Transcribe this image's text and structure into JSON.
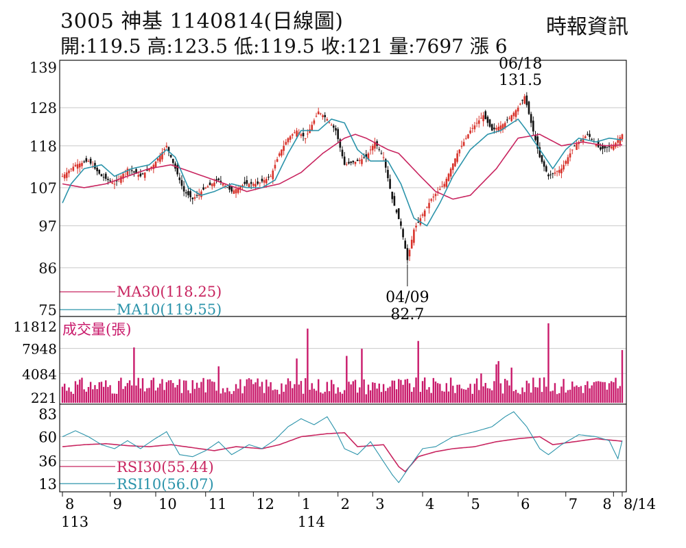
{
  "header": {
    "title": "3005  神基 1140814(日線圖)",
    "ohlc": "開:119.5 高:123.5 低:119.5 收:121 量:7697 漲 6",
    "source": "時報資訊"
  },
  "chart_data": [
    {
      "type": "candlestick",
      "title": "3005  神基 1140814(日線圖)",
      "y_ticks": [
        139,
        128,
        118,
        107,
        97,
        86,
        75
      ],
      "ylim": [
        75,
        139
      ],
      "grid": true,
      "x_ticks": [
        "8",
        "9",
        "10",
        "11",
        "12",
        "1",
        "2",
        "3",
        "4",
        "5",
        "6",
        "7",
        "8",
        "8/14"
      ],
      "x_year_labels": [
        {
          "label": "113",
          "at_month": "8"
        },
        {
          "label": "114",
          "at_month": "1"
        }
      ],
      "annotations": [
        {
          "date": "06/18",
          "value": "131.5",
          "kind": "high"
        },
        {
          "date": "04/09",
          "value": "82.7",
          "kind": "low"
        }
      ],
      "legend": [
        {
          "name": "MA30(118.25)",
          "color": "#c8245f"
        },
        {
          "name": "MA10(119.55)",
          "color": "#2a93aa"
        }
      ],
      "colors": {
        "up": "#d8322a",
        "down": "#111111"
      },
      "ma30": [
        [
          0,
          108
        ],
        [
          10,
          107
        ],
        [
          20,
          108
        ],
        [
          30,
          110
        ],
        [
          40,
          112
        ],
        [
          50,
          113
        ],
        [
          55,
          112
        ],
        [
          65,
          110
        ],
        [
          75,
          108
        ],
        [
          85,
          106
        ],
        [
          92,
          107
        ],
        [
          100,
          108
        ],
        [
          110,
          111
        ],
        [
          120,
          116
        ],
        [
          130,
          120
        ],
        [
          135,
          121
        ],
        [
          140,
          120
        ],
        [
          150,
          117
        ],
        [
          155,
          116
        ],
        [
          165,
          110
        ],
        [
          172,
          106
        ],
        [
          180,
          104
        ],
        [
          188,
          105
        ],
        [
          200,
          112
        ],
        [
          210,
          120
        ],
        [
          220,
          121
        ],
        [
          230,
          118
        ],
        [
          240,
          119
        ],
        [
          250,
          118
        ],
        [
          258,
          118.25
        ]
      ],
      "ma10": [
        [
          0,
          103
        ],
        [
          4,
          108
        ],
        [
          10,
          112
        ],
        [
          18,
          113
        ],
        [
          24,
          110
        ],
        [
          32,
          112
        ],
        [
          40,
          113
        ],
        [
          48,
          117
        ],
        [
          52,
          115
        ],
        [
          58,
          107
        ],
        [
          64,
          105
        ],
        [
          70,
          106
        ],
        [
          78,
          108
        ],
        [
          85,
          107
        ],
        [
          92,
          107
        ],
        [
          98,
          109
        ],
        [
          104,
          116
        ],
        [
          110,
          122
        ],
        [
          118,
          122
        ],
        [
          124,
          125
        ],
        [
          130,
          124
        ],
        [
          136,
          117
        ],
        [
          142,
          114
        ],
        [
          150,
          114
        ],
        [
          156,
          108
        ],
        [
          162,
          99
        ],
        [
          168,
          97
        ],
        [
          174,
          103
        ],
        [
          180,
          110
        ],
        [
          188,
          117
        ],
        [
          196,
          121
        ],
        [
          202,
          122
        ],
        [
          210,
          125
        ],
        [
          214,
          122
        ],
        [
          220,
          117
        ],
        [
          226,
          112
        ],
        [
          232,
          117
        ],
        [
          238,
          120
        ],
        [
          246,
          119
        ],
        [
          252,
          120
        ],
        [
          258,
          119.55
        ]
      ],
      "close_anchors": [
        [
          0,
          110
        ],
        [
          6,
          113
        ],
        [
          12,
          114
        ],
        [
          18,
          110
        ],
        [
          24,
          108
        ],
        [
          30,
          112
        ],
        [
          36,
          110
        ],
        [
          42,
          113
        ],
        [
          48,
          118
        ],
        [
          52,
          112
        ],
        [
          56,
          106
        ],
        [
          60,
          104
        ],
        [
          66,
          107
        ],
        [
          72,
          109
        ],
        [
          78,
          106
        ],
        [
          84,
          108
        ],
        [
          90,
          108
        ],
        [
          96,
          110
        ],
        [
          100,
          116
        ],
        [
          104,
          120
        ],
        [
          108,
          122
        ],
        [
          112,
          120
        ],
        [
          118,
          127
        ],
        [
          122,
          125
        ],
        [
          126,
          122
        ],
        [
          130,
          113
        ],
        [
          136,
          114
        ],
        [
          140,
          115
        ],
        [
          144,
          119
        ],
        [
          148,
          115
        ],
        [
          152,
          104
        ],
        [
          156,
          97
        ],
        [
          159,
          88
        ],
        [
          162,
          96
        ],
        [
          166,
          100
        ],
        [
          170,
          104
        ],
        [
          176,
          108
        ],
        [
          182,
          116
        ],
        [
          188,
          122
        ],
        [
          194,
          126
        ],
        [
          198,
          122
        ],
        [
          204,
          124
        ],
        [
          210,
          128
        ],
        [
          213,
          131
        ],
        [
          216,
          124
        ],
        [
          220,
          115
        ],
        [
          224,
          110
        ],
        [
          230,
          112
        ],
        [
          236,
          118
        ],
        [
          242,
          121
        ],
        [
          248,
          117
        ],
        [
          254,
          118
        ],
        [
          258,
          121
        ]
      ]
    },
    {
      "type": "bar",
      "title": "成交量(張)",
      "y_ticks": [
        11812,
        7948,
        4084,
        221
      ],
      "ylim": [
        221,
        11812
      ],
      "color": "#c91a6b",
      "spikes": [
        [
          33,
          8100
        ],
        [
          65,
          3400
        ],
        [
          72,
          5200
        ],
        [
          108,
          6400
        ],
        [
          113,
          11000
        ],
        [
          131,
          6800
        ],
        [
          138,
          7900
        ],
        [
          164,
          9100
        ],
        [
          193,
          4100
        ],
        [
          200,
          5500
        ],
        [
          201,
          6000
        ],
        [
          207,
          5000
        ],
        [
          222,
          3500
        ],
        [
          224,
          11812
        ],
        [
          258,
          7697
        ]
      ]
    },
    {
      "type": "line",
      "title": "",
      "y_ticks": [
        83,
        60,
        36,
        13
      ],
      "ylim": [
        13,
        83
      ],
      "legend": [
        {
          "name": "RSI30(55.44)",
          "color": "#c8245f"
        },
        {
          "name": "RSI10(56.07)",
          "color": "#2a93aa"
        }
      ],
      "rsi30": [
        [
          0,
          50
        ],
        [
          10,
          52
        ],
        [
          20,
          53
        ],
        [
          30,
          51
        ],
        [
          40,
          50
        ],
        [
          50,
          52
        ],
        [
          60,
          49
        ],
        [
          70,
          46
        ],
        [
          80,
          50
        ],
        [
          92,
          48
        ],
        [
          100,
          52
        ],
        [
          110,
          60
        ],
        [
          122,
          63
        ],
        [
          130,
          64
        ],
        [
          136,
          50
        ],
        [
          148,
          52
        ],
        [
          155,
          30
        ],
        [
          158,
          25
        ],
        [
          164,
          40
        ],
        [
          172,
          45
        ],
        [
          180,
          48
        ],
        [
          190,
          50
        ],
        [
          200,
          55
        ],
        [
          210,
          58
        ],
        [
          220,
          60
        ],
        [
          226,
          52
        ],
        [
          236,
          55
        ],
        [
          246,
          58
        ],
        [
          258,
          55.44
        ]
      ],
      "rsi10": [
        [
          0,
          60
        ],
        [
          6,
          66
        ],
        [
          12,
          60
        ],
        [
          18,
          52
        ],
        [
          24,
          48
        ],
        [
          30,
          56
        ],
        [
          36,
          48
        ],
        [
          42,
          57
        ],
        [
          48,
          65
        ],
        [
          54,
          42
        ],
        [
          60,
          40
        ],
        [
          66,
          46
        ],
        [
          72,
          55
        ],
        [
          78,
          42
        ],
        [
          86,
          52
        ],
        [
          92,
          48
        ],
        [
          98,
          57
        ],
        [
          104,
          70
        ],
        [
          110,
          78
        ],
        [
          116,
          72
        ],
        [
          122,
          80
        ],
        [
          126,
          66
        ],
        [
          130,
          48
        ],
        [
          136,
          42
        ],
        [
          142,
          55
        ],
        [
          148,
          35
        ],
        [
          152,
          22
        ],
        [
          155,
          14
        ],
        [
          160,
          30
        ],
        [
          166,
          48
        ],
        [
          172,
          50
        ],
        [
          180,
          60
        ],
        [
          190,
          65
        ],
        [
          198,
          70
        ],
        [
          204,
          80
        ],
        [
          208,
          85
        ],
        [
          214,
          70
        ],
        [
          220,
          48
        ],
        [
          224,
          42
        ],
        [
          230,
          52
        ],
        [
          238,
          62
        ],
        [
          246,
          60
        ],
        [
          252,
          56
        ],
        [
          256,
          38
        ],
        [
          258,
          56.07
        ]
      ]
    }
  ]
}
